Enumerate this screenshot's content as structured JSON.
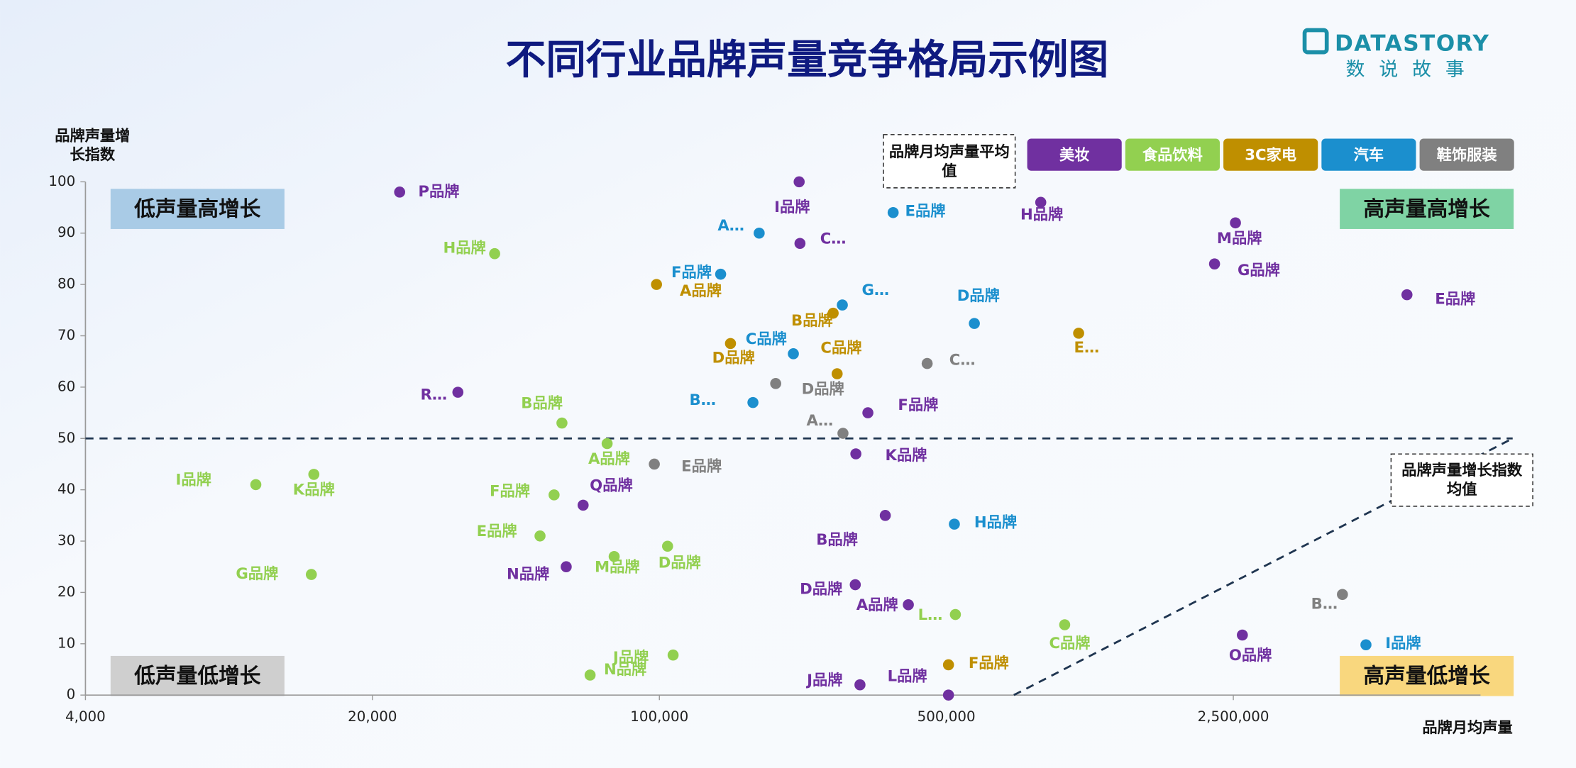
{
  "logo": {
    "name": "DATASTORY",
    "subtitle": "数 说 故 事"
  },
  "chart_data": {
    "type": "scatter",
    "title": "不同行业品牌声量竞争格局示例图",
    "x_label": "品牌月均声量",
    "y_label": "品牌声量增长指数",
    "xscale": "log",
    "xlim": [
      4000,
      10000000
    ],
    "xticks": [
      {
        "value": 4000,
        "label": "4,000"
      },
      {
        "value": 20000,
        "label": "20,000"
      },
      {
        "value": 100000,
        "label": "100,000"
      },
      {
        "value": 500000,
        "label": "500,000"
      },
      {
        "value": 2500000,
        "label": "2,500,000"
      }
    ],
    "ylim": [
      0,
      100
    ],
    "yticks": [
      0,
      10,
      20,
      30,
      40,
      50,
      60,
      70,
      80,
      90,
      100
    ],
    "quadrant_labels": [
      "低声量高增长",
      "高声量高增长",
      "低声量低增长",
      "高声量低增长"
    ],
    "reference_lines": [
      {
        "label": "品牌月均声量平均值",
        "axis": "x",
        "value": 730000
      },
      {
        "label": "品牌声量增长指数均值",
        "axis": "y",
        "value": 50
      }
    ],
    "series": [
      {
        "name": "美妆",
        "color": "#7030a0",
        "labels": [
          "P品牌",
          "I品牌",
          "C…",
          "H品牌",
          "M品牌",
          "G品牌",
          "E品牌",
          "R…",
          "F品牌",
          "K品牌",
          "Q品牌",
          "B品牌",
          "N品牌",
          "D品牌",
          "A品牌",
          "J品牌",
          "L品牌",
          "O品牌"
        ],
        "x": [
          23300,
          219000,
          220000,
          849000,
          2530000,
          2250000,
          6620000,
          32300,
          322000,
          301000,
          65200,
          355000,
          59300,
          300000,
          404000,
          308000,
          506000,
          2630000
        ],
        "values": [
          98,
          100,
          88,
          96,
          92,
          84,
          78,
          59,
          55,
          47,
          37,
          35,
          25,
          21.5,
          17.6,
          2,
          0,
          11.7
        ]
      },
      {
        "name": "食品饮料",
        "color": "#92d050",
        "labels": [
          "H品牌",
          "B品牌",
          "A品牌",
          "I品牌",
          "K品牌",
          "F品牌",
          "E品牌",
          "D品牌",
          "M品牌",
          "G品牌",
          "L…",
          "C品牌",
          "J品牌",
          "N品牌"
        ],
        "x": [
          39700,
          57900,
          74600,
          10400,
          14400,
          55400,
          51200,
          104700,
          77600,
          14200,
          526000,
          971000,
          108000,
          67800
        ],
        "values": [
          86,
          53,
          49,
          41,
          43,
          39,
          31,
          29,
          27,
          23.5,
          15.7,
          13.7,
          7.8,
          3.9
        ]
      },
      {
        "name": "3C家电",
        "color": "#bf8f00",
        "labels": [
          "A品牌",
          "B品牌",
          "D品牌",
          "C品牌",
          "E…",
          "F品牌"
        ],
        "x": [
          98400,
          265000,
          149000,
          271000,
          1050000,
          506000
        ],
        "values": [
          80,
          74.4,
          68.5,
          62.6,
          70.5,
          5.9
        ]
      },
      {
        "name": "汽车",
        "color": "#1b8fce",
        "labels": [
          "E品牌",
          "A…",
          "F品牌",
          "G…",
          "D品牌",
          "C品牌",
          "B…",
          "H品牌",
          "I品牌"
        ],
        "x": [
          371000,
          175000,
          141000,
          279000,
          585000,
          212000,
          169000,
          523000,
          5260000
        ],
        "values": [
          94,
          90,
          82,
          76,
          72.4,
          66.5,
          57,
          33.3,
          9.8
        ]
      },
      {
        "name": "鞋饰服装",
        "color": "#808080",
        "labels": [
          "C…",
          "D品牌",
          "A…",
          "E品牌",
          "B…"
        ],
        "x": [
          449000,
          192000,
          280000,
          97200,
          4610000
        ],
        "values": [
          64.6,
          60.7,
          51,
          45,
          19.6
        ]
      }
    ]
  }
}
